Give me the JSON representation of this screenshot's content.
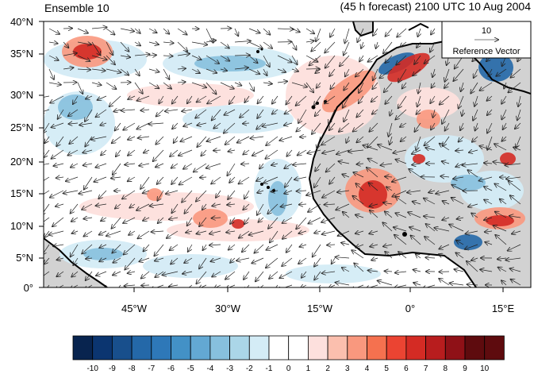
{
  "header": {
    "left_title": "Ensemble 10",
    "right_title": "(45 h forecast) 2100 UTC 10 Aug 2004"
  },
  "map": {
    "lat_labels": [
      "40°N",
      "35°N",
      "30°N",
      "25°N",
      "20°N",
      "15°N",
      "10°N",
      "5°N",
      "0°"
    ],
    "lon_labels": [
      "45°W",
      "30°W",
      "15°W",
      "0°",
      "15°E"
    ],
    "land_color": "#cccccc",
    "coast_color": "#000000"
  },
  "reference_vector": {
    "value": "10",
    "label": "Reference Vector"
  },
  "colorbar": {
    "labels": [
      "-10",
      "-9",
      "-8",
      "-7",
      "-6",
      "-5",
      "-4",
      "-3",
      "-2",
      "-1",
      "0",
      "1",
      "2",
      "3",
      "4",
      "5",
      "6",
      "7",
      "8",
      "9",
      "10"
    ],
    "colors": [
      "#08244f",
      "#0b3570",
      "#184f8c",
      "#2468a8",
      "#2e78b8",
      "#4391c6",
      "#63a8d3",
      "#87c0de",
      "#abd6e8",
      "#d4ecf6",
      "#ffffff",
      "#ffffff",
      "#fde0dd",
      "#fbbfae",
      "#f9987e",
      "#f5714f",
      "#eb4432",
      "#d42b24",
      "#b81d1e",
      "#8f1117",
      "#5e0b0e"
    ]
  }
}
